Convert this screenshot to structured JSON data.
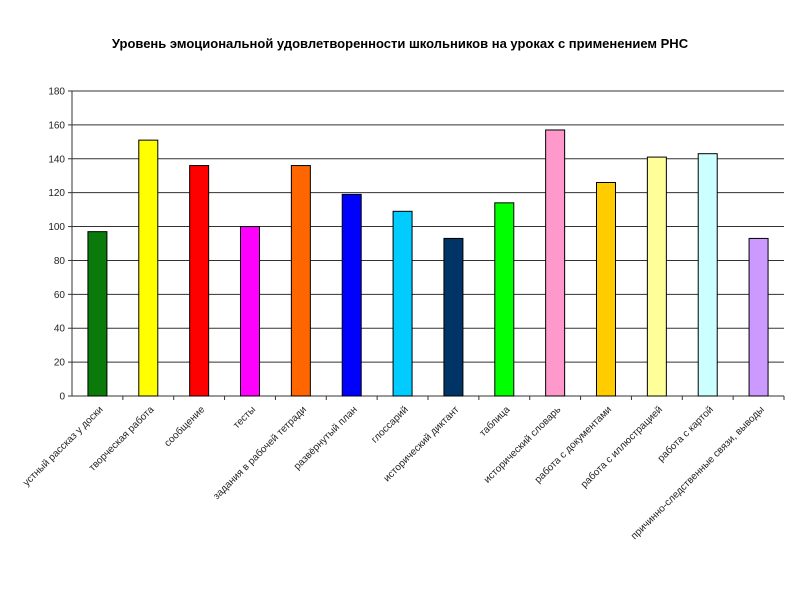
{
  "chart_data": {
    "type": "bar",
    "title": "Уровень эмоциональной удовлетворенности школьников на уроках с применением РНС",
    "xlabel": "",
    "ylabel": "",
    "ylim": [
      0,
      180
    ],
    "yticks": [
      0,
      20,
      40,
      60,
      80,
      100,
      120,
      140,
      160,
      180
    ],
    "grid": true,
    "legend": "none",
    "categories": [
      "устный рассказ у доски",
      "творческая работа",
      "сообщение",
      "тесты",
      "задания в рабочей тетради",
      "развёрнутый план",
      "глоссарий",
      "исторический диктант",
      "таблица",
      "исторический словарь",
      "работа с документами",
      "работа с иллюстрацией",
      "работа с картой",
      "причинно-следственные связи, выводы"
    ],
    "values": [
      97,
      151,
      136,
      100,
      136,
      119,
      109,
      93,
      114,
      157,
      126,
      141,
      143,
      93
    ],
    "colors": [
      "#0a7a0a",
      "#ffff00",
      "#ff0000",
      "#ff00ff",
      "#ff6600",
      "#0000ff",
      "#00ccff",
      "#003366",
      "#00ff00",
      "#ff99cc",
      "#ffcc00",
      "#ffff99",
      "#ccffff",
      "#cc99ff"
    ]
  }
}
